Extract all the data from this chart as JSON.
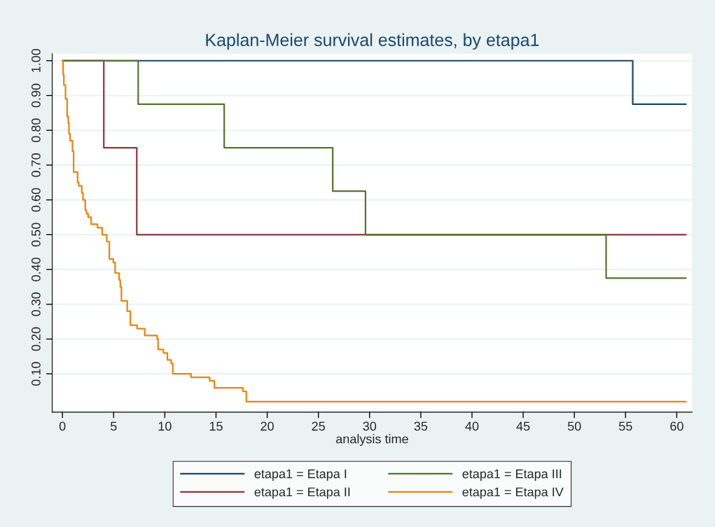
{
  "chart_data": {
    "type": "step",
    "title": "Kaplan-Meier survival estimates, by etapa1",
    "xlabel": "analysis time",
    "xlim": [
      -1,
      61.5
    ],
    "ylim": [
      -0.01,
      1.02
    ],
    "xticks": [
      0,
      5,
      10,
      15,
      20,
      25,
      30,
      35,
      40,
      45,
      50,
      55,
      60
    ],
    "yticks": [
      {
        "value": 0.1,
        "label": "0.10"
      },
      {
        "value": 0.2,
        "label": "0.20"
      },
      {
        "value": 0.3,
        "label": "0.30"
      },
      {
        "value": 0.4,
        "label": "0.40"
      },
      {
        "value": 0.5,
        "label": "0.50"
      },
      {
        "value": 0.6,
        "label": "0.60"
      },
      {
        "value": 0.7,
        "label": "0.70"
      },
      {
        "value": 0.8,
        "label": "0.80"
      },
      {
        "value": 0.9,
        "label": "0.90"
      },
      {
        "value": 1.0,
        "label": "1.00"
      }
    ],
    "grid": "y",
    "legend": "bottom",
    "series": [
      {
        "name": "etapa1 = Etapa I",
        "color": "#1a476f",
        "x": [
          0,
          55.7,
          60.9
        ],
        "values": [
          1.0,
          0.875,
          0.875
        ]
      },
      {
        "name": "etapa1 = Etapa II",
        "color": "#90353b",
        "x": [
          0,
          4.04,
          7.26,
          60.9
        ],
        "values": [
          1.0,
          0.75,
          0.5,
          0.5
        ]
      },
      {
        "name": "etapa1 = Etapa III",
        "color": "#55752f",
        "x": [
          0,
          7.4,
          15.8,
          26.4,
          29.6,
          53.1,
          60.9
        ],
        "values": [
          1.0,
          0.875,
          0.75,
          0.625,
          0.5,
          0.375,
          0.375
        ]
      },
      {
        "name": "etapa1 = Etapa IV",
        "color": "#e8850c",
        "x": [
          0,
          0.07,
          0.14,
          0.3,
          0.46,
          0.57,
          0.64,
          0.75,
          0.98,
          1.09,
          1.48,
          1.6,
          1.89,
          2.01,
          2.23,
          2.35,
          2.51,
          2.81,
          3.42,
          3.88,
          4.33,
          4.58,
          4.97,
          5.15,
          5.54,
          5.65,
          5.76,
          6.33,
          6.63,
          7.29,
          8.04,
          9.25,
          9.34,
          9.87,
          10.25,
          10.62,
          10.78,
          12.56,
          14.38,
          14.84,
          17.62,
          17.96,
          60.9
        ],
        "values": [
          1.0,
          0.96,
          0.93,
          0.89,
          0.84,
          0.82,
          0.79,
          0.77,
          0.74,
          0.68,
          0.65,
          0.64,
          0.62,
          0.6,
          0.57,
          0.56,
          0.55,
          0.53,
          0.52,
          0.5,
          0.48,
          0.43,
          0.42,
          0.39,
          0.37,
          0.35,
          0.31,
          0.28,
          0.24,
          0.23,
          0.21,
          0.2,
          0.17,
          0.16,
          0.14,
          0.13,
          0.1,
          0.09,
          0.08,
          0.06,
          0.05,
          0.02,
          0.02
        ]
      }
    ]
  }
}
